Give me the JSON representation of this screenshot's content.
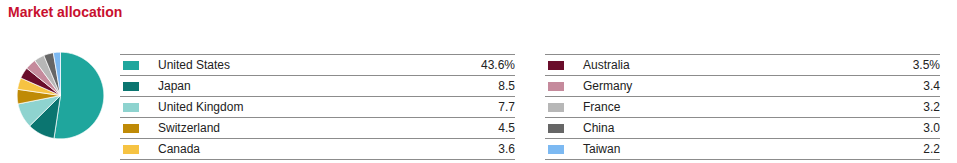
{
  "chart_data": {
    "type": "pie",
    "title": "Market allocation",
    "categories": [
      "United States",
      "Japan",
      "United Kingdom",
      "Switzerland",
      "Canada",
      "Australia",
      "Germany",
      "France",
      "China",
      "Taiwan"
    ],
    "values": [
      43.6,
      8.5,
      7.7,
      4.5,
      3.6,
      3.5,
      3.4,
      3.2,
      3.0,
      2.2
    ],
    "value_labels": [
      "43.6%",
      "8.5",
      "7.7",
      "4.5",
      "3.6",
      "3.5%",
      "3.4",
      "3.2",
      "3.0",
      "2.2"
    ],
    "colors": [
      "#1fa69d",
      "#0b7570",
      "#8ed3cf",
      "#bf8a06",
      "#f6c343",
      "#6a0d2b",
      "#c58a9c",
      "#b7b7b7",
      "#666666",
      "#7cb9f2"
    ]
  }
}
